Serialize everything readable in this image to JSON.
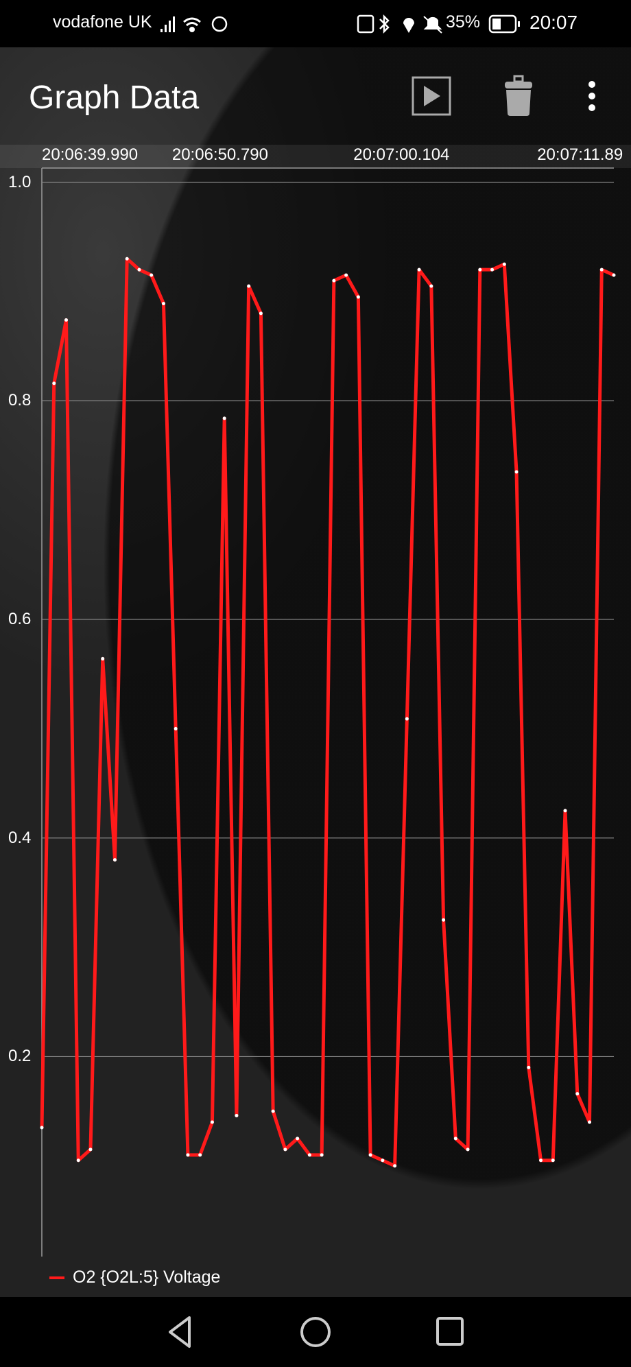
{
  "status_bar": {
    "carrier": "vodafone UK",
    "battery": "35%",
    "time": "20:07",
    "icons": [
      "signal-icon",
      "wifi-icon",
      "whatsapp-icon",
      "nfc-icon",
      "bluetooth-icon",
      "location-icon",
      "mute-icon",
      "battery-icon"
    ]
  },
  "app_bar": {
    "title": "Graph Data",
    "actions": [
      "play-icon",
      "trash-icon",
      "more-vert-icon"
    ]
  },
  "colors": {
    "series": "#ff1a1a",
    "point": "#ffffff",
    "grid": "#888888",
    "background": "#1b1b1b"
  },
  "chart_data": {
    "type": "line",
    "title": "",
    "xlabel": "",
    "ylabel": "",
    "x_ticks": [
      {
        "label": "20:06:39.990",
        "index": 0
      },
      {
        "label": "20:06:50.790",
        "index": 10.7
      },
      {
        "label": "20:07:00.104",
        "index": 25.6
      },
      {
        "label": "20:07:11.89",
        "index": 40.7
      }
    ],
    "y_ticks": [
      1.0,
      0.8,
      0.6,
      0.4,
      0.2
    ],
    "y_tick_labels": [
      "1.0",
      "0.8",
      "0.6",
      "0.4",
      "0.2"
    ],
    "ylim": [
      0.017,
      1.013
    ],
    "grid": true,
    "legend_position": "bottom-left",
    "series": [
      {
        "name": "O2 {O2L:5} Voltage",
        "values": [
          0.135,
          0.816,
          0.874,
          0.105,
          0.115,
          0.564,
          0.38,
          0.93,
          0.92,
          0.915,
          0.889,
          0.5,
          0.11,
          0.11,
          0.14,
          0.784,
          0.146,
          0.905,
          0.88,
          0.15,
          0.115,
          0.125,
          0.11,
          0.11,
          0.91,
          0.915,
          0.895,
          0.11,
          0.105,
          0.1,
          0.509,
          0.92,
          0.905,
          0.325,
          0.125,
          0.115,
          0.92,
          0.92,
          0.925,
          0.735,
          0.19,
          0.105,
          0.105,
          0.425,
          0.166,
          0.14,
          0.92,
          0.915
        ]
      }
    ]
  },
  "nav_bar": {
    "buttons": [
      "back-icon",
      "home-icon",
      "recents-icon"
    ]
  }
}
